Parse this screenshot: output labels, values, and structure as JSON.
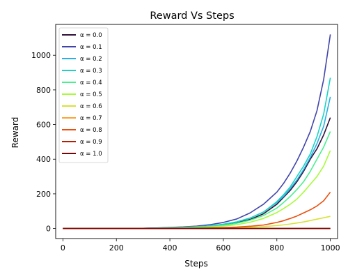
{
  "chart_data": {
    "type": "line",
    "title": "Reward Vs Steps",
    "xlabel": "Steps",
    "ylabel": "Reward",
    "xlim": [
      -27,
      1027
    ],
    "ylim": [
      -58,
      1178
    ],
    "xticks": [
      0,
      200,
      400,
      600,
      800,
      1000
    ],
    "yticks": [
      0,
      200,
      400,
      600,
      800,
      1000
    ],
    "grid": false,
    "legend_position": "top-left",
    "x": [
      0,
      100,
      200,
      300,
      350,
      400,
      450,
      500,
      550,
      600,
      650,
      700,
      750,
      800,
      825,
      850,
      875,
      900,
      925,
      950,
      975,
      1000
    ],
    "series": [
      {
        "name": "α = 0.0",
        "color": "#30123b",
        "values": [
          0,
          0,
          0,
          1,
          2,
          3,
          5,
          8,
          12,
          20,
          32,
          52,
          85,
          140,
          180,
          220,
          270,
          330,
          400,
          460,
          540,
          640
        ]
      },
      {
        "name": "α = 0.1",
        "color": "#4145ab",
        "values": [
          0,
          0,
          0,
          1,
          3,
          6,
          9,
          14,
          22,
          35,
          55,
          90,
          140,
          210,
          260,
          320,
          390,
          470,
          560,
          680,
          860,
          1120
        ]
      },
      {
        "name": "α = 0.2",
        "color": "#2ab0e4",
        "values": [
          0,
          0,
          0,
          1,
          2,
          4,
          6,
          10,
          15,
          25,
          38,
          60,
          95,
          150,
          185,
          230,
          280,
          340,
          410,
          490,
          590,
          760
        ]
      },
      {
        "name": "α = 0.3",
        "color": "#1ad3c6",
        "values": [
          0,
          0,
          0,
          1,
          2,
          4,
          6,
          10,
          15,
          24,
          38,
          60,
          95,
          155,
          195,
          240,
          300,
          360,
          430,
          530,
          660,
          870
        ]
      },
      {
        "name": "α = 0.4",
        "color": "#4af08e",
        "values": [
          0,
          0,
          0,
          0,
          1,
          2,
          4,
          7,
          11,
          18,
          30,
          48,
          75,
          118,
          150,
          185,
          225,
          270,
          330,
          400,
          470,
          560
        ]
      },
      {
        "name": "α = 0.5",
        "color": "#a8fb3c",
        "values": [
          0,
          0,
          0,
          0,
          1,
          2,
          3,
          5,
          8,
          14,
          22,
          36,
          58,
          92,
          115,
          140,
          170,
          210,
          255,
          300,
          360,
          450
        ]
      },
      {
        "name": "α = 0.6",
        "color": "#d8e236",
        "values": [
          0,
          0,
          0,
          0,
          0,
          0,
          1,
          1,
          2,
          3,
          5,
          7,
          11,
          17,
          21,
          26,
          32,
          38,
          46,
          54,
          62,
          70
        ]
      },
      {
        "name": "α = 0.7",
        "color": "#fda230",
        "values": [
          0,
          0,
          0,
          0,
          0,
          0,
          0,
          0,
          0,
          0,
          0,
          0,
          0,
          0,
          0,
          0,
          0,
          0,
          0,
          0,
          0,
          0
        ]
      },
      {
        "name": "α = 0.8",
        "color": "#ea4f0d",
        "values": [
          0,
          0,
          0,
          0,
          0,
          1,
          1,
          2,
          3,
          5,
          8,
          13,
          20,
          35,
          45,
          58,
          72,
          90,
          108,
          130,
          160,
          210
        ]
      },
      {
        "name": "α = 0.9",
        "color": "#b61f02",
        "values": [
          0,
          0,
          0,
          0,
          0,
          0,
          0,
          0,
          0,
          0,
          0,
          0,
          0,
          0,
          0,
          0,
          0,
          0,
          0,
          0,
          0,
          0
        ]
      },
      {
        "name": "α = 1.0",
        "color": "#7a0403",
        "values": [
          0,
          0,
          0,
          0,
          0,
          0,
          0,
          0,
          0,
          0,
          0,
          0,
          0,
          0,
          0,
          0,
          0,
          0,
          0,
          0,
          0,
          0
        ]
      }
    ]
  }
}
